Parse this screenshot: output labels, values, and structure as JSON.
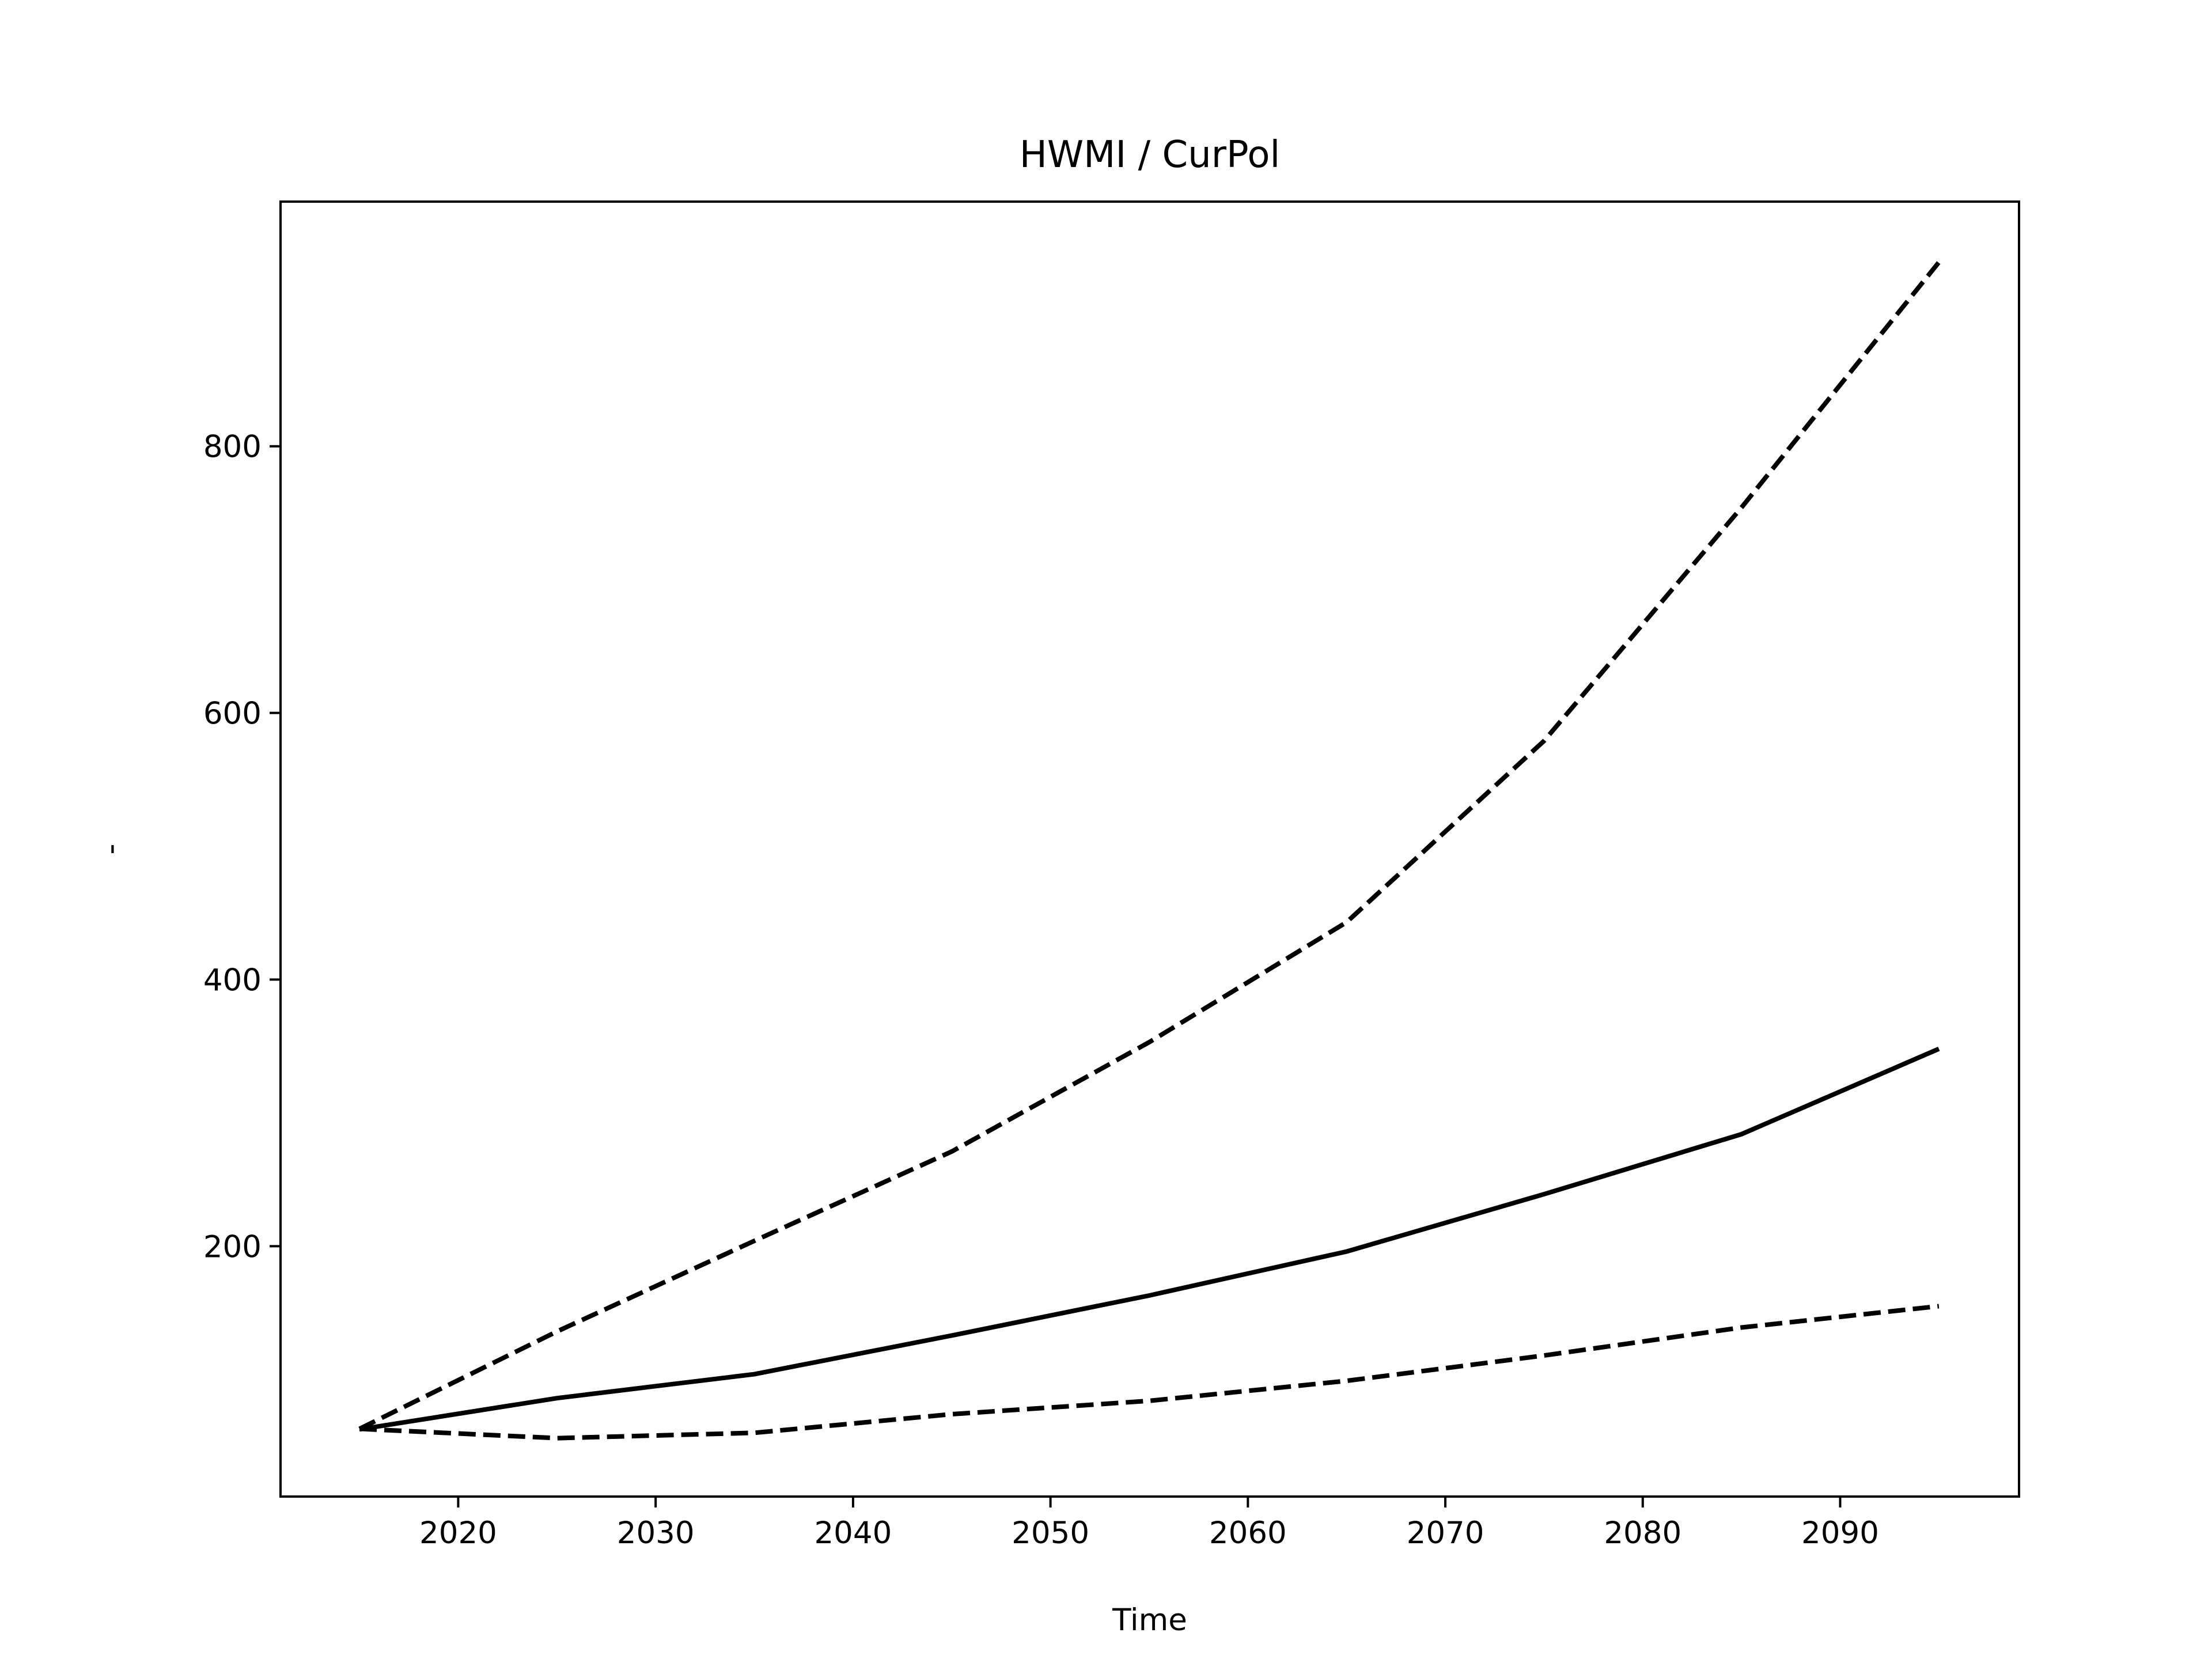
{
  "chart_data": {
    "type": "line",
    "title": "HWMI / CurPol",
    "xlabel": "Time",
    "ylabel": "-",
    "x": [
      2015,
      2025,
      2035,
      2045,
      2055,
      2065,
      2075,
      2085,
      2095
    ],
    "series": [
      {
        "color": "#000000",
        "dash": "solid",
        "values": [
          62.6,
          86,
          104,
          133,
          163,
          196,
          239,
          284,
          348
        ]
      },
      {
        "color": "#000000",
        "dash": "dashed",
        "values": [
          63,
          136,
          204,
          271,
          353,
          443,
          579,
          754,
          938
        ]
      },
      {
        "color": "#000000",
        "dash": "dashed",
        "values": [
          63,
          56,
          60,
          74,
          84,
          99,
          118,
          139,
          155
        ]
      }
    ],
    "xlim": [
      2011,
      2099.06
    ],
    "xticks": [
      2020,
      2030,
      2040,
      2050,
      2060,
      2070,
      2080,
      2090
    ],
    "ylim": [
      12.2,
      983.5
    ],
    "yticks": [
      200,
      400,
      600,
      800
    ],
    "grid": false
  }
}
